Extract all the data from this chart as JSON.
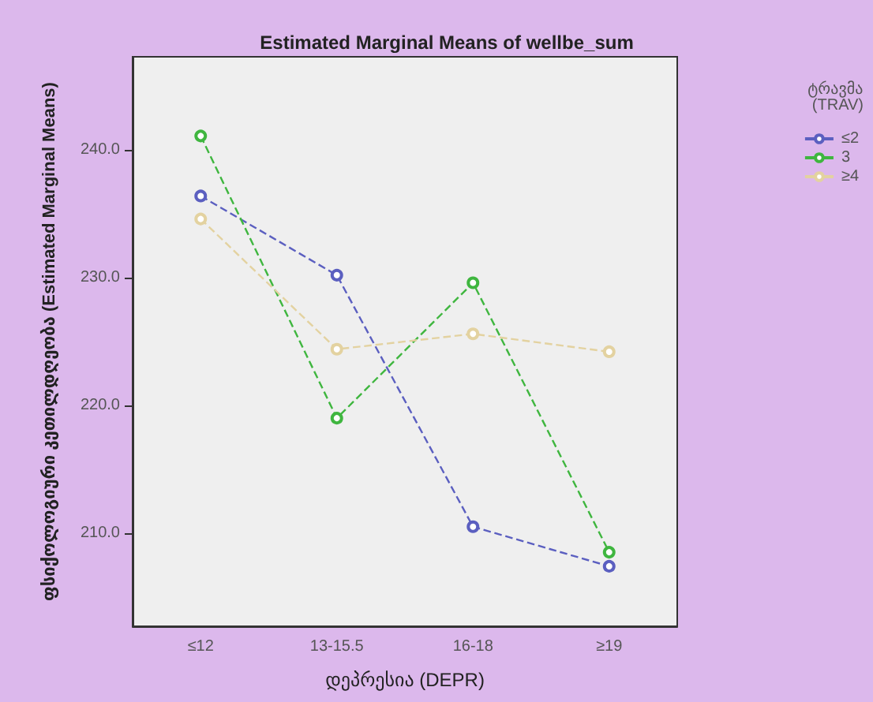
{
  "chart_data": {
    "type": "line",
    "title": "Estimated Marginal Means of wellbe_sum",
    "xlabel": "დეპრესია (DEPR)",
    "ylabel": "ფსიქოლოგიური კეთილდღეობა (Estimated Marginal Means)",
    "legend_title": "ტრავმა (TRAV)",
    "categories": [
      "≤12",
      "13-15.5",
      "16-18",
      "≥19"
    ],
    "series": [
      {
        "name": "≤2",
        "color": "#5b5fc0",
        "values": [
          236.4,
          230.2,
          210.5,
          207.4
        ]
      },
      {
        "name": "3",
        "color": "#3fb63f",
        "values": [
          241.1,
          219.0,
          229.6,
          208.5
        ]
      },
      {
        "name": "≥4",
        "color": "#e3d2a0",
        "values": [
          234.6,
          224.4,
          225.6,
          224.2
        ]
      }
    ],
    "ylim": [
      202.7,
      247.3
    ],
    "yticks": [
      {
        "value": 210,
        "label": "210.0"
      },
      {
        "value": 220,
        "label": "220.0"
      },
      {
        "value": 230,
        "label": "230.0"
      },
      {
        "value": 240,
        "label": "240.0"
      }
    ],
    "grid": false,
    "legend": "top right",
    "marker": "circle",
    "line_style": "dashed"
  }
}
